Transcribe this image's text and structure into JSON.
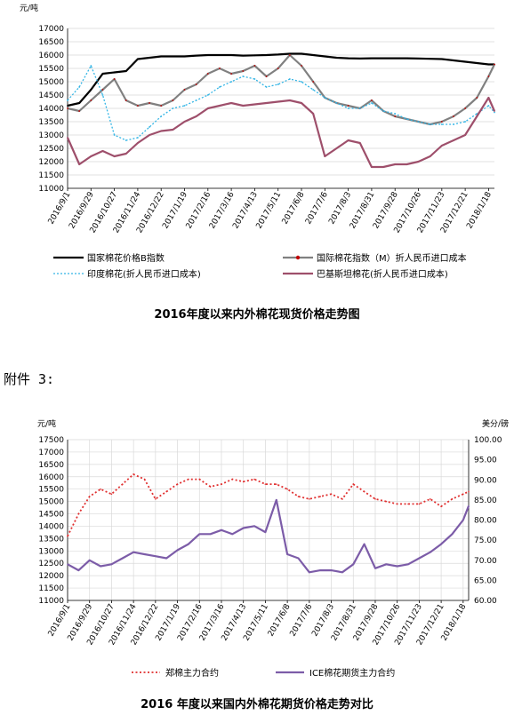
{
  "attachment_label": "附件 3:",
  "colors": {
    "national_b": "#000000",
    "international_m": "#808080",
    "international_m_marker": "#c00000",
    "india": "#33b5e5",
    "pakistan": "#9e4f6b",
    "zce": "#e03030",
    "ice": "#7c5ca8"
  },
  "chart_data": [
    {
      "type": "line",
      "title": "2016年度以来内外棉花现货价格走势图",
      "ylabel": "元/吨",
      "ylim": [
        11000,
        17000
      ],
      "yticks": [
        11000,
        11500,
        12000,
        12500,
        13000,
        13500,
        14000,
        14500,
        15000,
        15500,
        16000,
        16500,
        17000
      ],
      "x_tick_labels": [
        "2016/9/1",
        "2016/9/29",
        "2016/10/27",
        "2016/11/24",
        "2016/12/22",
        "2017/1/19",
        "2017/2/16",
        "2017/3/16",
        "2017/4/13",
        "2017/5/11",
        "2017/6/8",
        "2017/7/6",
        "2017/8/3",
        "2017/8/31",
        "2017/9/28",
        "2017/10/26",
        "2017/11/23",
        "2017/12/21",
        "2018/1/18"
      ],
      "grid": true,
      "legend_position": "bottom",
      "x": [
        "2016/9/1",
        "2016/9/15",
        "2016/9/29",
        "2016/10/13",
        "2016/10/27",
        "2016/11/10",
        "2016/11/24",
        "2016/12/8",
        "2016/12/22",
        "2017/1/5",
        "2017/1/19",
        "2017/2/2",
        "2017/2/16",
        "2017/3/2",
        "2017/3/16",
        "2017/3/30",
        "2017/4/13",
        "2017/4/27",
        "2017/5/11",
        "2017/5/25",
        "2017/6/8",
        "2017/6/22",
        "2017/7/6",
        "2017/7/20",
        "2017/8/3",
        "2017/8/17",
        "2017/8/31",
        "2017/9/14",
        "2017/9/28",
        "2017/10/12",
        "2017/10/26",
        "2017/11/9",
        "2017/11/23",
        "2017/12/7",
        "2017/12/21",
        "2018/1/4",
        "2018/1/18",
        "2018/1/25"
      ],
      "series": [
        {
          "name": "国家棉花价格B指数",
          "style": "solid-thick",
          "values": [
            14100,
            14200,
            14700,
            15300,
            15350,
            15400,
            15850,
            15900,
            15950,
            15950,
            15950,
            15980,
            16000,
            16000,
            16000,
            15980,
            15990,
            16000,
            16020,
            16050,
            16050,
            16000,
            15950,
            15900,
            15880,
            15870,
            15880,
            15880,
            15880,
            15880,
            15870,
            15860,
            15850,
            15800,
            15750,
            15700,
            15650,
            15650
          ]
        },
        {
          "name": "国际棉花指数（M）折人民币进口成本",
          "style": "solid-marker",
          "values": [
            14000,
            13900,
            14300,
            14700,
            15100,
            14300,
            14100,
            14200,
            14100,
            14300,
            14700,
            14900,
            15300,
            15500,
            15300,
            15400,
            15600,
            15200,
            15500,
            16000,
            15600,
            15000,
            14400,
            14200,
            14100,
            14000,
            14300,
            13900,
            13700,
            13600,
            13500,
            13400,
            13500,
            13700,
            14000,
            14400,
            15200,
            15650
          ]
        },
        {
          "name": "印度棉花(折人民币进口成本)",
          "style": "dotted",
          "values": [
            14300,
            14800,
            15600,
            14500,
            13000,
            12800,
            12900,
            13300,
            13700,
            14000,
            14100,
            14300,
            14500,
            14800,
            15000,
            15200,
            15100,
            14800,
            14900,
            15100,
            15000,
            14700,
            14400,
            14200,
            14000,
            14000,
            14200,
            13900,
            13800,
            13600,
            13500,
            13400,
            13400,
            13400,
            13500,
            13800,
            14100,
            13850
          ]
        },
        {
          "name": "巴基斯坦棉花(折人民币进口成本)",
          "style": "solid",
          "values": [
            12900,
            11900,
            12200,
            12400,
            12200,
            12300,
            12700,
            13000,
            13150,
            13200,
            13500,
            13700,
            14000,
            14100,
            14200,
            14100,
            14150,
            14200,
            14250,
            14300,
            14200,
            13800,
            12200,
            12500,
            12800,
            12700,
            11800,
            11800,
            11900,
            11900,
            12000,
            12200,
            12600,
            12800,
            13000,
            13700,
            14400,
            13900
          ]
        }
      ]
    },
    {
      "type": "line",
      "title": "2016 年度以来国内外棉花期货价格走势对比",
      "ylabel": "元/吨",
      "y2label": "美分/磅",
      "ylim": [
        11000,
        17500
      ],
      "yticks": [
        11000,
        11500,
        12000,
        12500,
        13000,
        13500,
        14000,
        14500,
        15000,
        15500,
        16000,
        16500,
        17000,
        17500
      ],
      "y2lim": [
        60,
        100
      ],
      "y2ticks": [
        "60.00",
        "65.00",
        "70.00",
        "75.00",
        "80.00",
        "85.00",
        "90.00",
        "95.00",
        "100.00"
      ],
      "x_tick_labels": [
        "2016/9/1",
        "2016/9/29",
        "2016/10/27",
        "2016/11/24",
        "2016/12/22",
        "2017/1/19",
        "2017/2/16",
        "2017/3/16",
        "2017/4/13",
        "2017/5/11",
        "2017/6/8",
        "2017/7/6",
        "2017/8/3",
        "2017/8/31",
        "2017/9/28",
        "2017/10/26",
        "2017/11/23",
        "2017/12/21",
        "2018/1/18"
      ],
      "grid": true,
      "legend_position": "bottom",
      "x": [
        "2016/9/1",
        "2016/9/15",
        "2016/9/29",
        "2016/10/13",
        "2016/10/27",
        "2016/11/10",
        "2016/11/24",
        "2016/12/8",
        "2016/12/22",
        "2017/1/5",
        "2017/1/19",
        "2017/2/2",
        "2017/2/16",
        "2017/3/2",
        "2017/3/16",
        "2017/3/30",
        "2017/4/13",
        "2017/4/27",
        "2017/5/11",
        "2017/5/25",
        "2017/6/8",
        "2017/6/22",
        "2017/7/6",
        "2017/7/20",
        "2017/8/3",
        "2017/8/17",
        "2017/8/31",
        "2017/9/14",
        "2017/9/28",
        "2017/10/12",
        "2017/10/26",
        "2017/11/9",
        "2017/11/23",
        "2017/12/7",
        "2017/12/21",
        "2018/1/4",
        "2018/1/18",
        "2018/1/25"
      ],
      "series": [
        {
          "name": "郑棉主力合约",
          "axis": "left",
          "style": "dotted",
          "values": [
            13600,
            14500,
            15200,
            15500,
            15300,
            15700,
            16100,
            15900,
            15100,
            15400,
            15700,
            15900,
            15900,
            15600,
            15700,
            15900,
            15800,
            15900,
            15700,
            15700,
            15500,
            15200,
            15100,
            15200,
            15300,
            15100,
            15700,
            15400,
            15100,
            15000,
            14900,
            14900,
            14900,
            15100,
            14800,
            15100,
            15300,
            15400
          ]
        },
        {
          "name": "ICE棉花期货主力合约",
          "axis": "right",
          "style": "solid",
          "values": [
            69,
            67.5,
            70,
            68.5,
            69,
            70.5,
            72,
            71.5,
            71,
            70.5,
            72.5,
            74,
            76.5,
            76.5,
            77.5,
            76.5,
            78,
            78.5,
            77,
            85,
            71.5,
            70.5,
            67,
            67.5,
            67.5,
            67,
            69,
            74,
            68,
            69,
            68.5,
            69,
            70.5,
            72,
            74,
            76.5,
            80,
            83.5
          ]
        }
      ]
    }
  ]
}
